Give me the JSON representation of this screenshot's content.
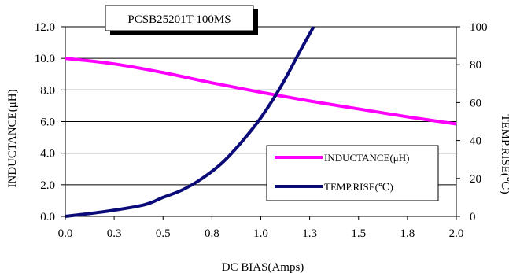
{
  "chart_data": {
    "type": "line",
    "title": "PCSB25201T-100MS",
    "xlabel": "DC BIAS(Amps)",
    "ylabel_left": "INDUCTANCE(μH)",
    "ylabel_right": "TEMP.RISE(℃)",
    "xlim": [
      0.0,
      2.0
    ],
    "ylim_left": [
      0.0,
      12.0
    ],
    "ylim_right": [
      0,
      100
    ],
    "x_ticks": [
      "0.0",
      "0.3",
      "0.5",
      "0.8",
      "1.0",
      "1.3",
      "1.5",
      "1.8",
      "2.0"
    ],
    "y_ticks_left": [
      "0.0",
      "2.0",
      "4.0",
      "6.0",
      "8.0",
      "10.0",
      "12.0"
    ],
    "y_ticks_right": [
      "0",
      "20",
      "40",
      "60",
      "80",
      "100"
    ],
    "grid": "horizontal",
    "legend_position": "lower-right",
    "series": [
      {
        "name": "INDUCTANCE(μH)",
        "axis": "left",
        "color": "#ff00ff",
        "x": [
          0.0,
          0.25,
          0.5,
          0.75,
          1.0,
          1.25,
          1.5,
          1.75,
          2.0
        ],
        "y": [
          10.0,
          9.65,
          9.1,
          8.45,
          7.85,
          7.3,
          6.8,
          6.3,
          5.85
        ]
      },
      {
        "name": "TEMP.RISE(℃)",
        "axis": "right",
        "color": "#0a0a78",
        "x": [
          0.0,
          0.2,
          0.4,
          0.5,
          0.6,
          0.7,
          0.8,
          0.9,
          1.0,
          1.1,
          1.2,
          1.27
        ],
        "y": [
          0,
          2.5,
          6,
          10,
          14,
          20,
          28,
          39,
          52,
          68,
          87,
          100
        ]
      }
    ]
  }
}
